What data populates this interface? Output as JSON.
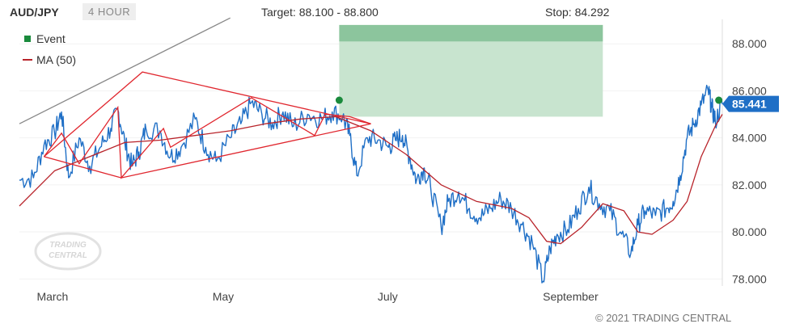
{
  "header": {
    "symbol": "AUD/JPY",
    "timeframe": "4 HOUR",
    "target": "Target: 88.100 - 88.800",
    "stop": "Stop: 84.292"
  },
  "legend": {
    "event": "Event",
    "ma": "MA (50)"
  },
  "copyright": "© 2021 TRADING CENTRAL",
  "watermark": "TRADING CENTRAL",
  "colors": {
    "price": "#1f6fc6",
    "ma": "#b8232a",
    "pattern": "#e0262e",
    "trendline": "#888888",
    "event": "#1a8a3c",
    "target_band": "#8cc59d",
    "target_zone": "#c5e3cc",
    "price_tag": "#1f6fc6"
  },
  "chart_data": {
    "type": "line",
    "x_axis": {
      "ticks": [
        {
          "label": "March",
          "t": 0.05
        },
        {
          "label": "May",
          "t": 0.3
        },
        {
          "label": "July",
          "t": 0.535
        },
        {
          "label": "September",
          "t": 0.77
        }
      ]
    },
    "y_axis": {
      "side": "right",
      "ylim": [
        77.7,
        88.9
      ],
      "ticks": [
        "88.000",
        "86.000",
        "84.000",
        "82.000",
        "80.000",
        "78.000"
      ],
      "tick_values": [
        88,
        86,
        84,
        82,
        80,
        78
      ]
    },
    "last_price": "85.441",
    "last_value": 85.441,
    "target_range": [
      88.1,
      88.8
    ],
    "stop_value": 84.292,
    "target_zone": {
      "t_start": 0.455,
      "t_end": 0.83,
      "low": 84.9,
      "high": 88.8,
      "band_low": 88.1
    },
    "series": [
      {
        "name": "AUD/JPY",
        "kind": "price",
        "points": [
          [
            0.0,
            82.2
          ],
          [
            0.02,
            82.3
          ],
          [
            0.035,
            83.7
          ],
          [
            0.05,
            84.2
          ],
          [
            0.06,
            85.1
          ],
          [
            0.07,
            82.3
          ],
          [
            0.085,
            84.0
          ],
          [
            0.1,
            82.8
          ],
          [
            0.115,
            83.6
          ],
          [
            0.13,
            84.4
          ],
          [
            0.14,
            85.2
          ],
          [
            0.15,
            83.8
          ],
          [
            0.16,
            82.8
          ],
          [
            0.17,
            83.4
          ],
          [
            0.18,
            84.4
          ],
          [
            0.2,
            84.3
          ],
          [
            0.215,
            83.2
          ],
          [
            0.23,
            83.6
          ],
          [
            0.25,
            84.8
          ],
          [
            0.265,
            83.6
          ],
          [
            0.28,
            83.0
          ],
          [
            0.3,
            84.0
          ],
          [
            0.315,
            84.6
          ],
          [
            0.33,
            85.5
          ],
          [
            0.345,
            85.0
          ],
          [
            0.36,
            84.6
          ],
          [
            0.375,
            85.1
          ],
          [
            0.39,
            84.5
          ],
          [
            0.41,
            85.0
          ],
          [
            0.43,
            84.8
          ],
          [
            0.445,
            85.1
          ],
          [
            0.46,
            84.9
          ],
          [
            0.47,
            84.1
          ],
          [
            0.48,
            82.4
          ],
          [
            0.495,
            84.0
          ],
          [
            0.51,
            83.9
          ],
          [
            0.525,
            83.6
          ],
          [
            0.535,
            83.9
          ],
          [
            0.545,
            84.1
          ],
          [
            0.555,
            83.2
          ],
          [
            0.565,
            82.2
          ],
          [
            0.575,
            82.7
          ],
          [
            0.585,
            81.9
          ],
          [
            0.6,
            80.2
          ],
          [
            0.61,
            81.3
          ],
          [
            0.625,
            81.7
          ],
          [
            0.64,
            81.0
          ],
          [
            0.655,
            80.6
          ],
          [
            0.67,
            81.0
          ],
          [
            0.685,
            81.4
          ],
          [
            0.7,
            81.0
          ],
          [
            0.715,
            80.3
          ],
          [
            0.73,
            79.5
          ],
          [
            0.745,
            77.9
          ],
          [
            0.755,
            79.3
          ],
          [
            0.765,
            79.9
          ],
          [
            0.78,
            80.1
          ],
          [
            0.795,
            81.0
          ],
          [
            0.81,
            81.9
          ],
          [
            0.825,
            81.2
          ],
          [
            0.84,
            80.9
          ],
          [
            0.855,
            80.0
          ],
          [
            0.87,
            79.1
          ],
          [
            0.88,
            80.3
          ],
          [
            0.89,
            80.9
          ],
          [
            0.905,
            80.7
          ],
          [
            0.92,
            81.0
          ],
          [
            0.93,
            81.3
          ],
          [
            0.94,
            82.4
          ],
          [
            0.95,
            84.0
          ],
          [
            0.96,
            84.6
          ],
          [
            0.97,
            85.4
          ],
          [
            0.98,
            86.0
          ],
          [
            0.985,
            85.3
          ],
          [
            0.99,
            84.7
          ],
          [
            1.0,
            85.44
          ]
        ]
      },
      {
        "name": "MA (50)",
        "kind": "ma",
        "points": [
          [
            0.0,
            81.1
          ],
          [
            0.05,
            82.6
          ],
          [
            0.1,
            83.2
          ],
          [
            0.15,
            83.8
          ],
          [
            0.2,
            83.9
          ],
          [
            0.25,
            84.1
          ],
          [
            0.3,
            84.3
          ],
          [
            0.35,
            84.6
          ],
          [
            0.4,
            84.8
          ],
          [
            0.45,
            84.9
          ],
          [
            0.5,
            84.3
          ],
          [
            0.55,
            83.3
          ],
          [
            0.6,
            82.0
          ],
          [
            0.65,
            81.3
          ],
          [
            0.7,
            81.0
          ],
          [
            0.725,
            80.6
          ],
          [
            0.75,
            79.6
          ],
          [
            0.77,
            79.5
          ],
          [
            0.8,
            80.2
          ],
          [
            0.83,
            81.2
          ],
          [
            0.86,
            80.9
          ],
          [
            0.88,
            80.0
          ],
          [
            0.9,
            79.9
          ],
          [
            0.93,
            80.5
          ],
          [
            0.95,
            81.3
          ],
          [
            0.97,
            83.2
          ],
          [
            0.99,
            84.5
          ],
          [
            1.0,
            85.0
          ]
        ]
      }
    ],
    "patterns": [
      {
        "name": "flag-diamond",
        "points": [
          [
            0.035,
            83.2
          ],
          [
            0.175,
            86.8
          ],
          [
            0.5,
            84.6
          ],
          [
            0.145,
            82.3
          ],
          [
            0.035,
            83.2
          ]
        ]
      },
      {
        "name": "inner-zigzag",
        "points": [
          [
            0.035,
            83.2
          ],
          [
            0.06,
            84.2
          ],
          [
            0.085,
            82.9
          ],
          [
            0.14,
            85.3
          ],
          [
            0.145,
            82.3
          ],
          [
            0.205,
            84.4
          ],
          [
            0.215,
            83.6
          ],
          [
            0.33,
            85.7
          ],
          [
            0.42,
            84.1
          ],
          [
            0.435,
            85.0
          ],
          [
            0.47,
            84.9
          ],
          [
            0.5,
            84.6
          ]
        ]
      }
    ],
    "trendline": [
      [
        0.0,
        84.6
      ],
      [
        0.3,
        89.1
      ]
    ],
    "events": [
      [
        0.455,
        85.6
      ],
      [
        0.995,
        85.6
      ]
    ]
  }
}
